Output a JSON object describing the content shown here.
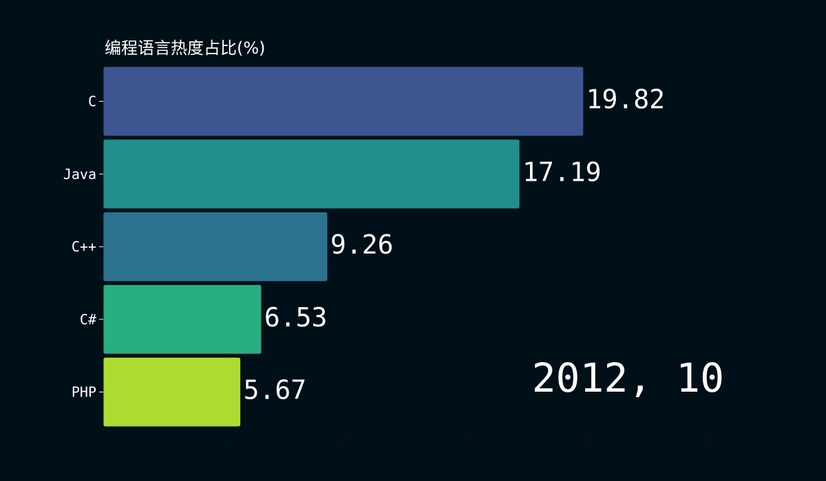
{
  "chart_data": {
    "type": "bar",
    "orientation": "horizontal",
    "title": "编程语言热度占比(%)",
    "date_label": "2012, 10",
    "categories": [
      "C",
      "Java",
      "C++",
      "C#",
      "PHP"
    ],
    "values": [
      19.82,
      17.19,
      9.26,
      6.53,
      5.67
    ],
    "value_labels": [
      "19.82",
      "17.19",
      "9.26",
      "6.53",
      "5.67"
    ],
    "colors": [
      "#3d5590",
      "#21908d",
      "#2c718e",
      "#28ae80",
      "#addc30"
    ],
    "xlim": [
      0,
      25
    ],
    "x_ticks": [
      "0",
      "5",
      "10",
      "15",
      "20",
      "25"
    ],
    "grid": false,
    "background": "#001018"
  }
}
